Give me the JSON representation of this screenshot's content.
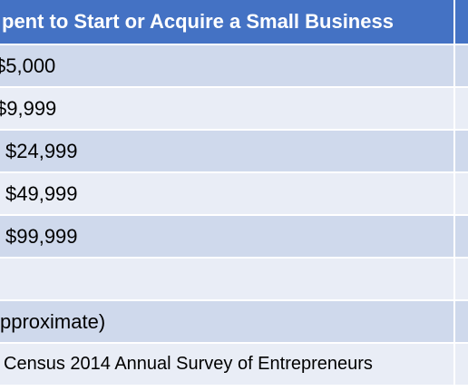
{
  "table": {
    "header": "pent to Start or Acquire a Small Business",
    "rows": [
      "$5,000",
      "$9,999",
      "$24,999",
      "$49,999",
      "$99,999",
      "",
      "pproximate)",
      "Census 2014 Annual Survey of Entrepreneurs"
    ]
  },
  "colors": {
    "header_bg": "#4472c4",
    "row_alt": "#cfd9ec",
    "row_plain": "#e9edf6"
  }
}
